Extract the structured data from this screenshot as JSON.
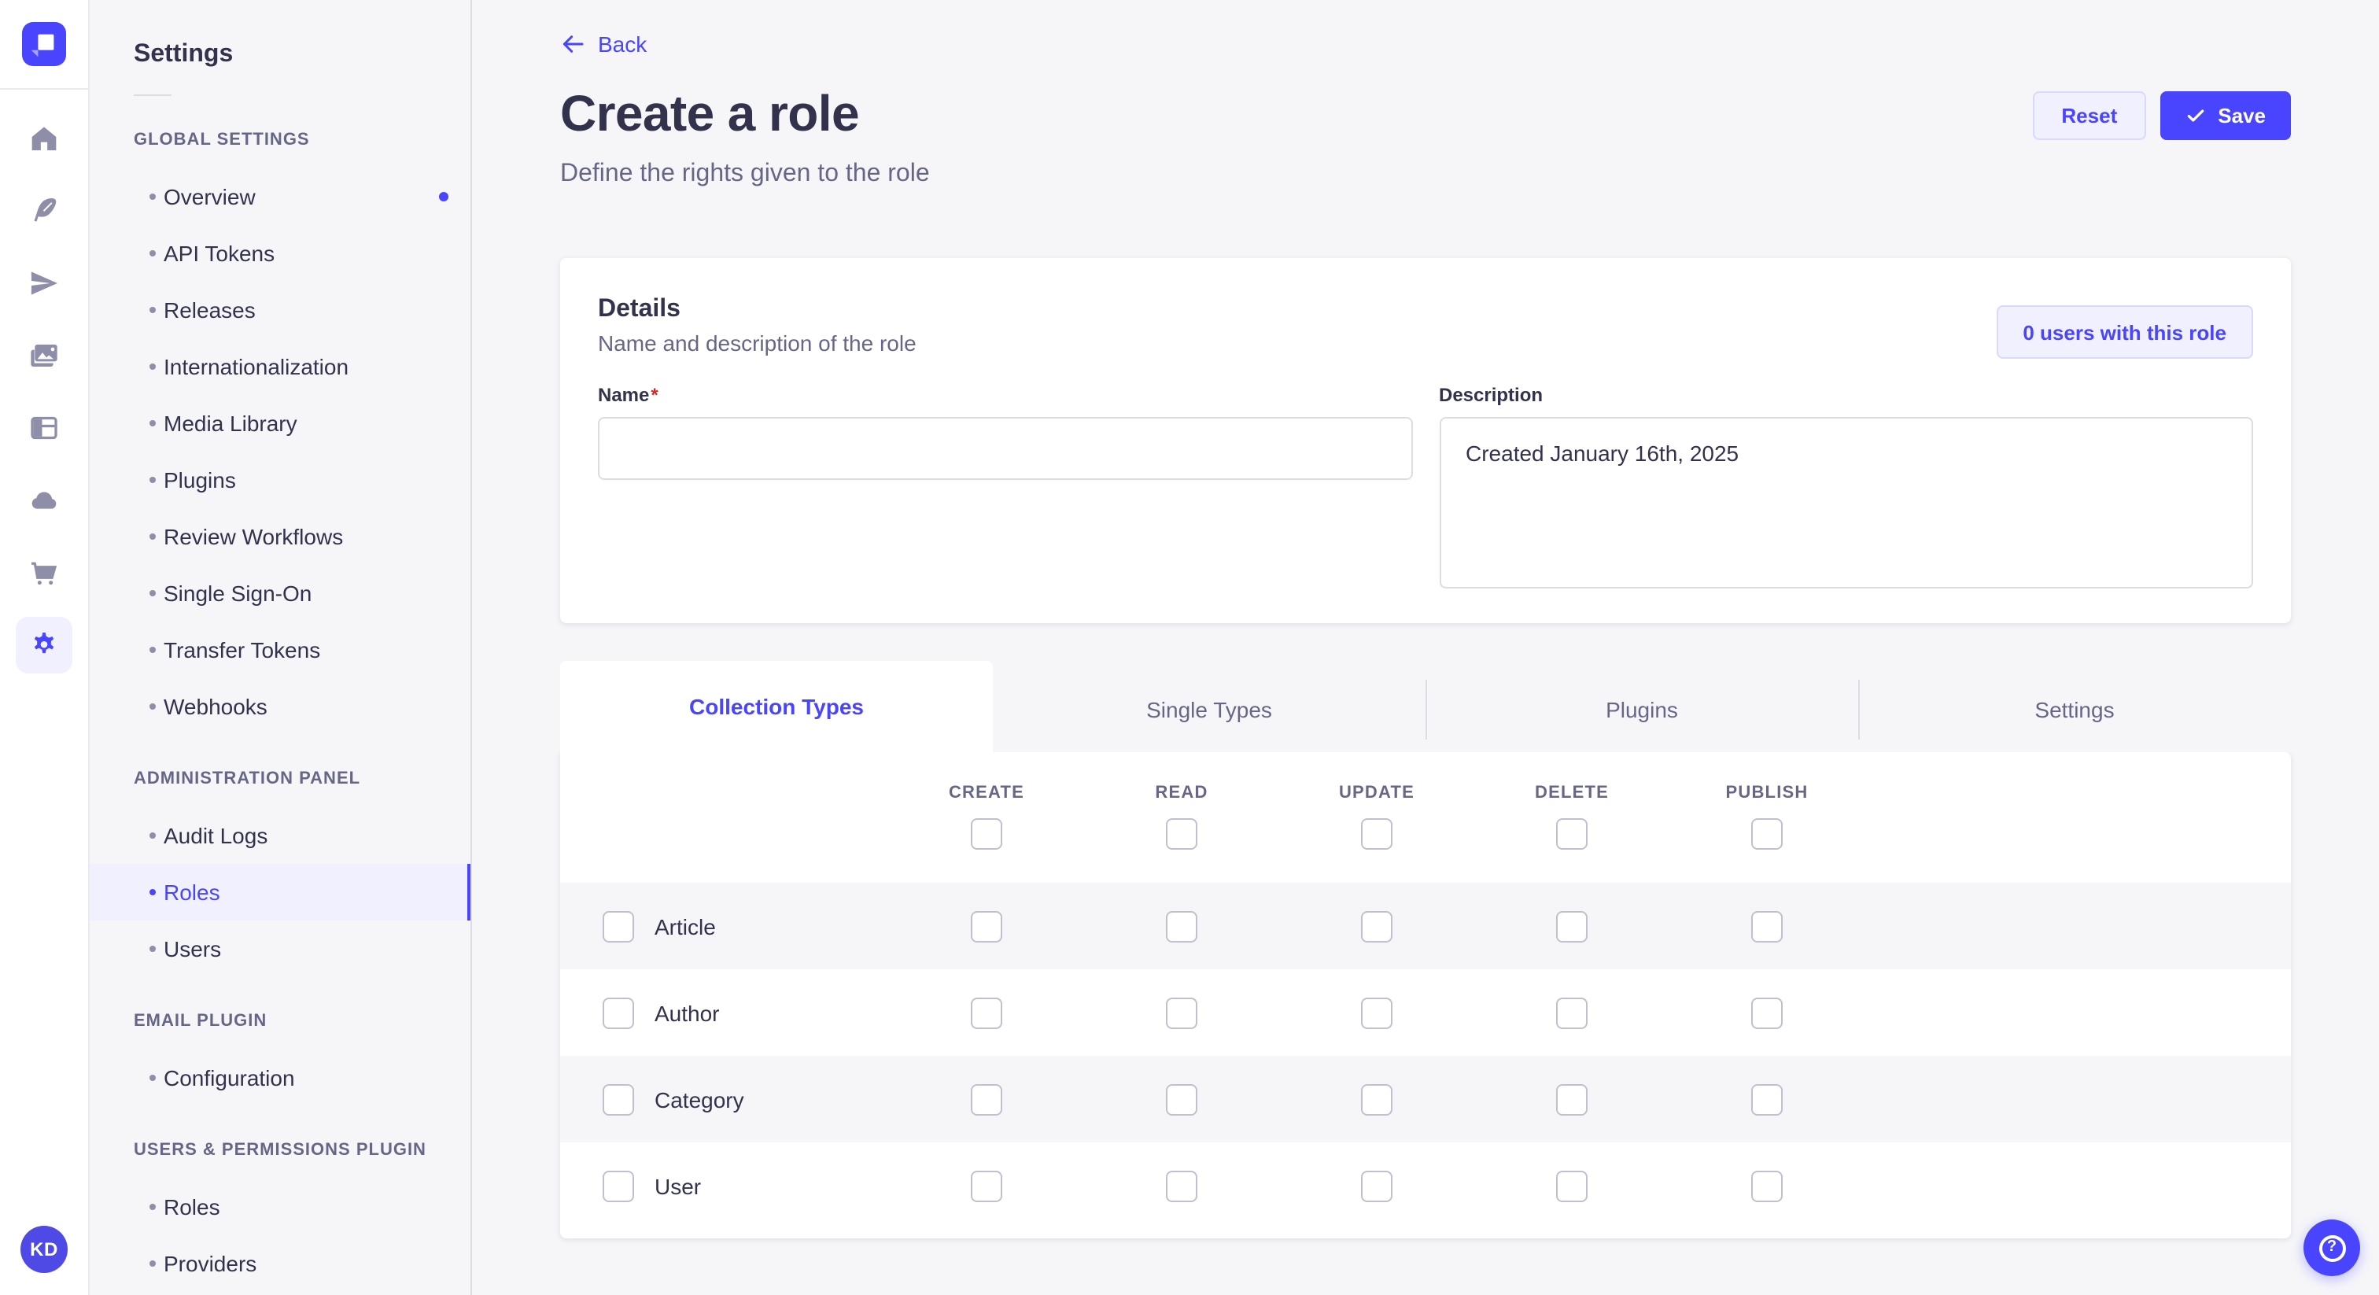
{
  "colors": {
    "brand": "#4945ff",
    "brand_light_bg": "#f0f0ff",
    "brand_border": "#d9d8ff",
    "text_dark": "#32324d",
    "text_muted": "#666687",
    "neutral_border": "#dcdce4",
    "page_bg": "#f6f6f9",
    "checkbox_border": "#c0c0cf",
    "rail_icon": "#8e8ea9",
    "required_red": "#d02b20"
  },
  "rail": {
    "logo_icon": "strapi-logo",
    "icons": [
      {
        "name": "home-icon",
        "active": false
      },
      {
        "name": "feather-icon",
        "active": false
      },
      {
        "name": "paper-plane-icon",
        "active": false
      },
      {
        "name": "media-library-icon",
        "active": false
      },
      {
        "name": "layout-icon",
        "active": false
      },
      {
        "name": "cloud-icon",
        "active": false
      },
      {
        "name": "cart-icon",
        "active": false
      },
      {
        "name": "gear-icon",
        "active": true
      }
    ],
    "avatar_initials": "KD"
  },
  "sidebar": {
    "title": "Settings",
    "sections": [
      {
        "label": "GLOBAL SETTINGS",
        "items": [
          {
            "label": "Overview",
            "active": false,
            "notification_dot": true
          },
          {
            "label": "API Tokens",
            "active": false,
            "notification_dot": false
          },
          {
            "label": "Releases",
            "active": false,
            "notification_dot": false
          },
          {
            "label": "Internationalization",
            "active": false,
            "notification_dot": false
          },
          {
            "label": "Media Library",
            "active": false,
            "notification_dot": false
          },
          {
            "label": "Plugins",
            "active": false,
            "notification_dot": false
          },
          {
            "label": "Review Workflows",
            "active": false,
            "notification_dot": false
          },
          {
            "label": "Single Sign-On",
            "active": false,
            "notification_dot": false
          },
          {
            "label": "Transfer Tokens",
            "active": false,
            "notification_dot": false
          },
          {
            "label": "Webhooks",
            "active": false,
            "notification_dot": false
          }
        ]
      },
      {
        "label": "ADMINISTRATION PANEL",
        "items": [
          {
            "label": "Audit Logs",
            "active": false,
            "notification_dot": false
          },
          {
            "label": "Roles",
            "active": true,
            "notification_dot": false
          },
          {
            "label": "Users",
            "active": false,
            "notification_dot": false
          }
        ]
      },
      {
        "label": "EMAIL PLUGIN",
        "items": [
          {
            "label": "Configuration",
            "active": false,
            "notification_dot": false
          }
        ]
      },
      {
        "label": "USERS & PERMISSIONS PLUGIN",
        "items": [
          {
            "label": "Roles",
            "active": false,
            "notification_dot": false
          },
          {
            "label": "Providers",
            "active": false,
            "notification_dot": false
          }
        ]
      }
    ]
  },
  "header": {
    "back_label": "Back",
    "title": "Create a role",
    "subtitle": "Define the rights given to the role",
    "reset_label": "Reset",
    "save_label": "Save"
  },
  "details": {
    "title": "Details",
    "subtitle": "Name and description of the role",
    "users_count_label": "0 users with this role",
    "name_label": "Name",
    "required_mark": "*",
    "name_value": "",
    "name_placeholder": "",
    "description_label": "Description",
    "description_value": "Created January 16th, 2025"
  },
  "tabs": [
    {
      "label": "Collection Types",
      "active": true
    },
    {
      "label": "Single Types",
      "active": false
    },
    {
      "label": "Plugins",
      "active": false
    },
    {
      "label": "Settings",
      "active": false
    }
  ],
  "permissions": {
    "columns": [
      "CREATE",
      "READ",
      "UPDATE",
      "DELETE",
      "PUBLISH"
    ],
    "header_checkboxes_checked": [
      false,
      false,
      false,
      false,
      false
    ],
    "rows": [
      {
        "name": "Article",
        "row_checked": false,
        "cells_checked": [
          false,
          false,
          false,
          false,
          false
        ]
      },
      {
        "name": "Author",
        "row_checked": false,
        "cells_checked": [
          false,
          false,
          false,
          false,
          false
        ]
      },
      {
        "name": "Category",
        "row_checked": false,
        "cells_checked": [
          false,
          false,
          false,
          false,
          false
        ]
      },
      {
        "name": "User",
        "row_checked": false,
        "cells_checked": [
          false,
          false,
          false,
          false,
          false
        ]
      }
    ]
  },
  "help_button": {
    "glyph": "?"
  }
}
